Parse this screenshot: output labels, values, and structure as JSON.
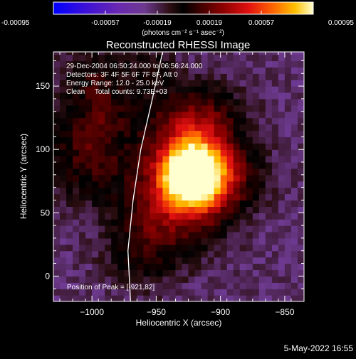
{
  "colorbar": {
    "tick_labels": [
      "-0.00095",
      "-0.00057",
      "-0.00019",
      "0.00019",
      "0.00057",
      "0.00095"
    ],
    "units_label": "(photons cm⁻² s⁻¹ asec⁻²)",
    "range": [
      -0.00095,
      0.00095
    ]
  },
  "chart_data": {
    "type": "heatmap",
    "title": "Reconstructed RHESSI Image",
    "xlabel": "Heliocentric X (arcsec)",
    "ylabel": "Heliocentric Y (arcsec)",
    "xlim": [
      -1030,
      -835
    ],
    "ylim": [
      -20,
      177
    ],
    "x_ticks": [
      -1000,
      -950,
      -900,
      -850
    ],
    "x_tick_labels": [
      "−1000",
      "−950",
      "−900",
      "−850"
    ],
    "y_ticks": [
      0,
      50,
      100,
      150
    ],
    "y_tick_labels": [
      "0",
      "50",
      "100",
      "150"
    ],
    "peak": {
      "x": -921,
      "y": 82
    },
    "peak_value": 0.00095,
    "annotations": [
      "29-Dec-2004 06:50:24.000 to 06:56:24.000",
      "Detectors: 3F 4F 5F 6F 7F 8F, Att 0",
      "Energy Range: 12.0 - 25.0 keV",
      "Clean     Total counts: 9.73E+03"
    ],
    "peak_label": "Position of Peak = [-921,82]",
    "limb_curve": [
      [
        -970,
        -20
      ],
      [
        -972,
        20
      ],
      [
        -968,
        60
      ],
      [
        -962,
        100
      ],
      [
        -953,
        140
      ],
      [
        -945,
        177
      ]
    ]
  },
  "footer": {
    "timestamp": "5-May-2022 16:55"
  }
}
